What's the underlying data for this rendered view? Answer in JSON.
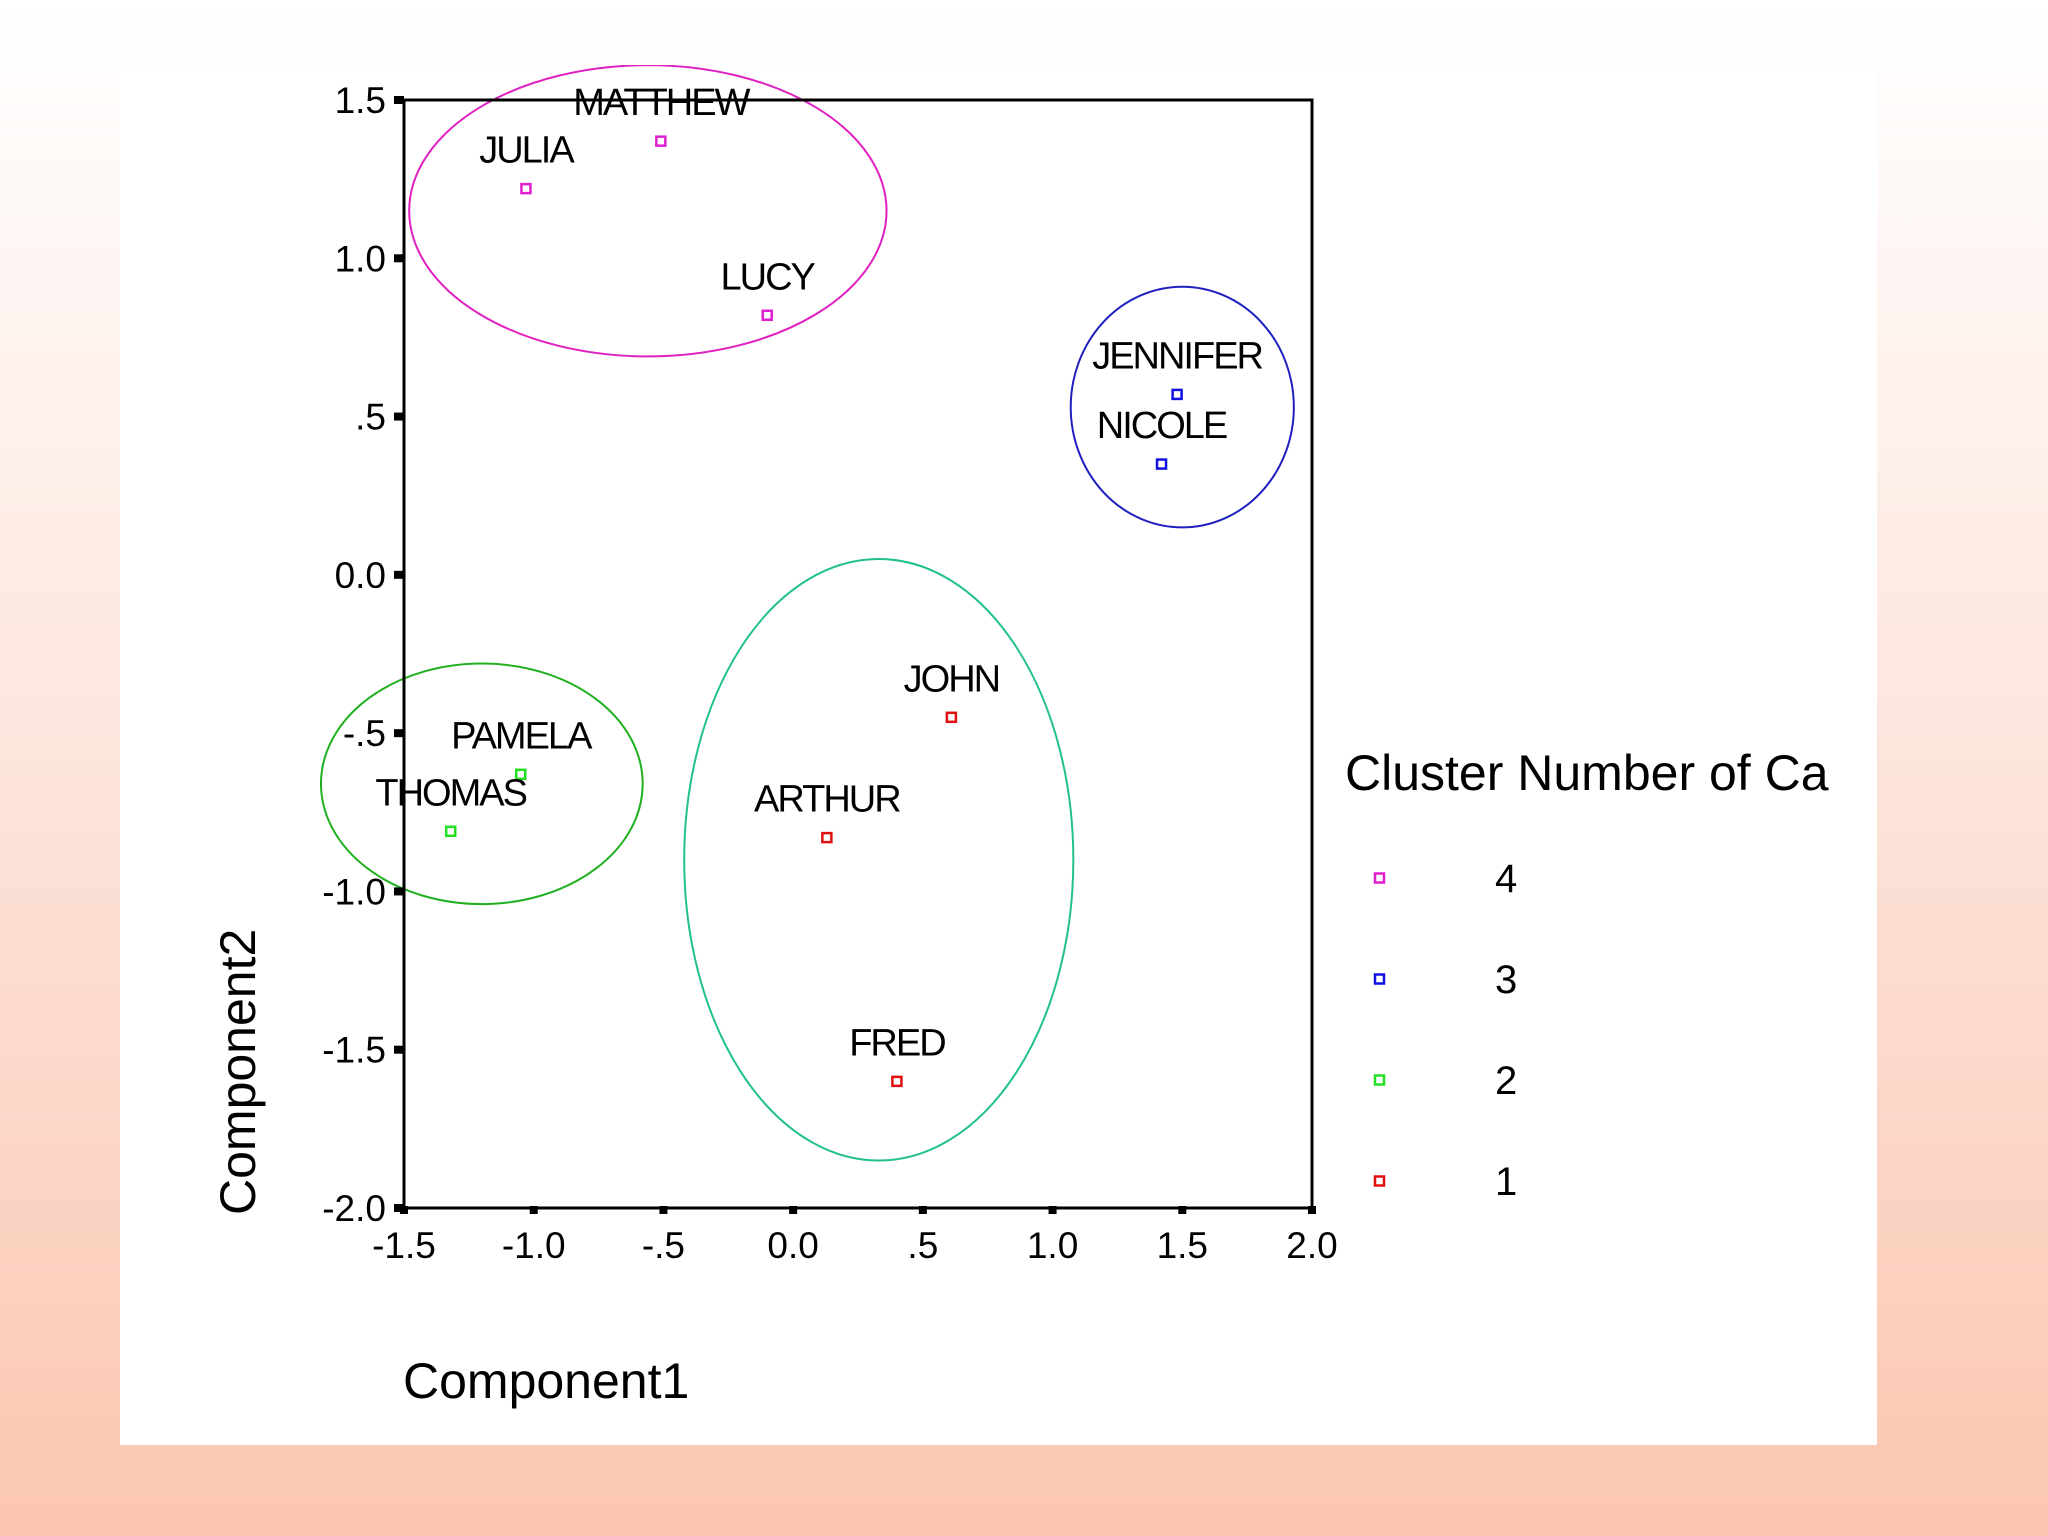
{
  "chart_data": {
    "type": "scatter",
    "xlabel": "Component1",
    "ylabel": "Component2",
    "xlim": [
      -1.5,
      2.0
    ],
    "ylim": [
      -2.0,
      1.5
    ],
    "x_ticks": [
      -1.5,
      -1.0,
      -0.5,
      0.0,
      0.5,
      1.0,
      1.5,
      2.0
    ],
    "x_tick_labels": [
      "-1.5",
      "-1.0",
      "-.5",
      "0.0",
      ".5",
      "1.0",
      "1.5",
      "2.0"
    ],
    "y_ticks": [
      1.5,
      1.0,
      0.5,
      0.0,
      -0.5,
      -1.0,
      -1.5,
      -2.0
    ],
    "y_tick_labels": [
      "1.5",
      "1.0",
      ".5",
      "0.0",
      "-.5",
      "-1.0",
      "-1.5",
      "-2.0"
    ],
    "grid": false,
    "legend_title": "Cluster Number of Ca",
    "legend_position": "right",
    "series": [
      {
        "name": "4",
        "color": "#e020d0",
        "points": [
          {
            "label": "MATTHEW",
            "x": -0.51,
            "y": 1.37
          },
          {
            "label": "JULIA",
            "x": -1.03,
            "y": 1.22
          },
          {
            "label": "LUCY",
            "x": -0.1,
            "y": 0.82
          }
        ]
      },
      {
        "name": "3",
        "color": "#1010e0",
        "points": [
          {
            "label": "JENNIFER",
            "x": 1.48,
            "y": 0.57
          },
          {
            "label": "NICOLE",
            "x": 1.42,
            "y": 0.35
          }
        ]
      },
      {
        "name": "2",
        "color": "#20e020",
        "points": [
          {
            "label": "PAMELA",
            "x": -1.05,
            "y": -0.63
          },
          {
            "label": "THOMAS",
            "x": -1.32,
            "y": -0.81
          }
        ]
      },
      {
        "name": "1",
        "color": "#e01010",
        "points": [
          {
            "label": "JOHN",
            "x": 0.61,
            "y": -0.45
          },
          {
            "label": "ARTHUR",
            "x": 0.13,
            "y": -0.83
          },
          {
            "label": "FRED",
            "x": 0.4,
            "y": -1.6
          }
        ]
      }
    ],
    "ellipses": [
      {
        "cx": -0.56,
        "cy": 1.15,
        "rx": 0.92,
        "ry": 0.46,
        "color": "#e020c0"
      },
      {
        "cx": 1.5,
        "cy": 0.53,
        "rx": 0.43,
        "ry": 0.38,
        "color": "#2020c0"
      },
      {
        "cx": -1.2,
        "cy": -0.66,
        "rx": 0.62,
        "ry": 0.38,
        "color": "#20b020"
      },
      {
        "cx": 0.33,
        "cy": -0.9,
        "rx": 0.75,
        "ry": 0.95,
        "color": "#20c090"
      }
    ]
  }
}
